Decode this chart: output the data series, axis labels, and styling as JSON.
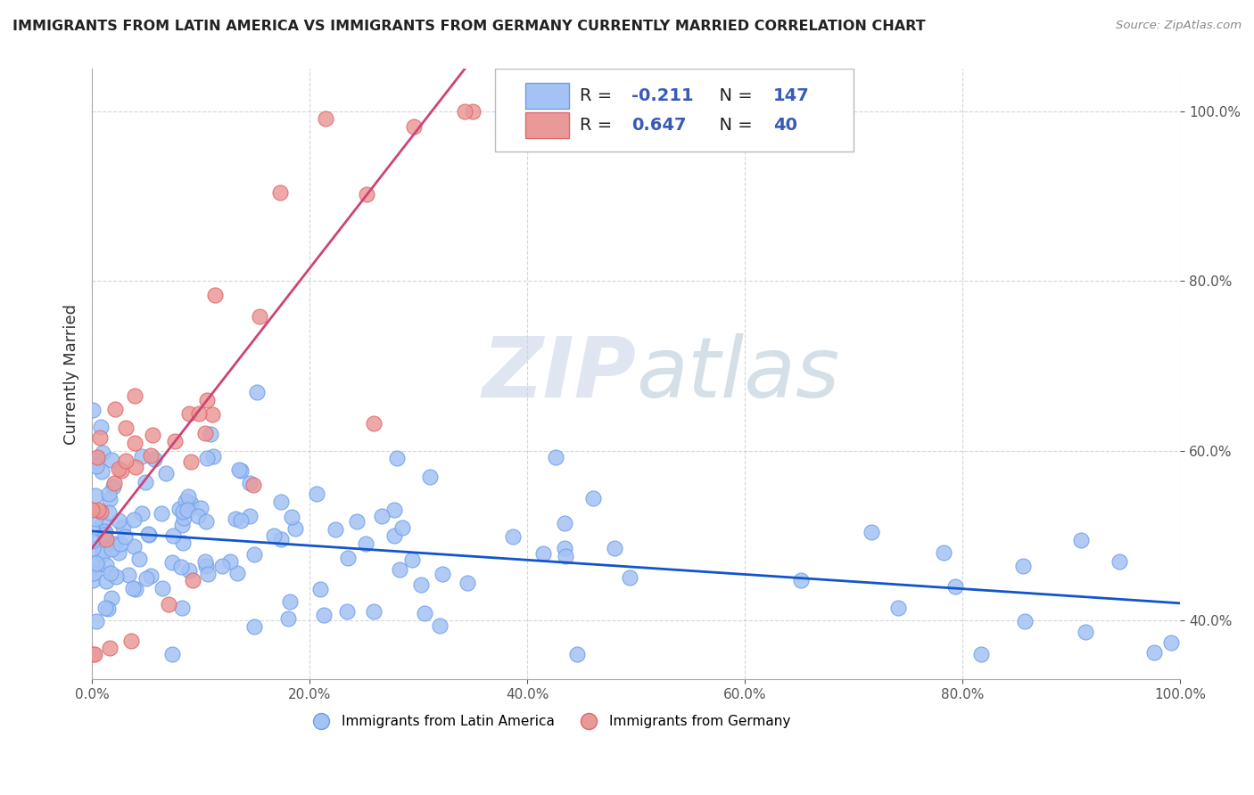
{
  "title": "IMMIGRANTS FROM LATIN AMERICA VS IMMIGRANTS FROM GERMANY CURRENTLY MARRIED CORRELATION CHART",
  "source": "Source: ZipAtlas.com",
  "ylabel": "Currently Married",
  "legend_label1": "Immigrants from Latin America",
  "legend_label2": "Immigrants from Germany",
  "R1": -0.211,
  "N1": 147,
  "R2": 0.647,
  "N2": 40,
  "color1": "#a4c2f4",
  "color2": "#ea9999",
  "edge_color1": "#6d9eeb",
  "edge_color2": "#e06666",
  "line_color1": "#1155cc",
  "line_color2": "#cc4477",
  "watermark": "ZIPatlas",
  "watermark_color1": "#c0c8e8",
  "watermark_color2": "#b0c0d8",
  "xmin": 0.0,
  "xmax": 1.0,
  "ymin": 0.33,
  "ymax": 1.05,
  "blue_slope": -0.085,
  "blue_intercept": 0.505,
  "pink_slope": 1.65,
  "pink_intercept": 0.485,
  "yticks": [
    0.4,
    0.6,
    0.8,
    1.0
  ],
  "xticks": [
    0.0,
    0.2,
    0.4,
    0.6,
    0.8,
    1.0
  ]
}
